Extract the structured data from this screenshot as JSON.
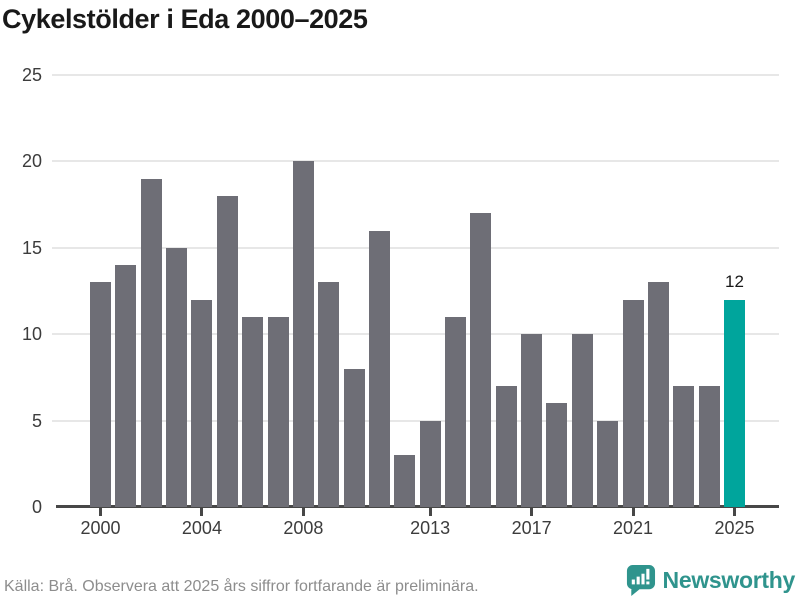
{
  "header": {
    "title": "Cykelstölder i Eda 2000–2025"
  },
  "chart_data": {
    "type": "bar",
    "title": "Cykelstölder i Eda 2000–2025",
    "categories": [
      2000,
      2001,
      2002,
      2003,
      2004,
      2005,
      2006,
      2007,
      2008,
      2009,
      2010,
      2011,
      2012,
      2013,
      2014,
      2015,
      2016,
      2017,
      2018,
      2019,
      2020,
      2021,
      2022,
      2023,
      2024,
      2025
    ],
    "values": [
      13,
      14,
      19,
      15,
      12,
      18,
      11,
      11,
      20,
      13,
      8,
      16,
      3,
      5,
      11,
      17,
      7,
      10,
      6,
      10,
      5,
      12,
      13,
      7,
      7,
      12
    ],
    "xlabel": "",
    "ylabel": "",
    "ylim": [
      0,
      25
    ],
    "yticks": [
      0,
      5,
      10,
      15,
      20,
      25
    ],
    "xticks": [
      2000,
      2004,
      2008,
      2013,
      2017,
      2021,
      2025
    ],
    "grid": true,
    "legend_position": "none",
    "highlight": {
      "year": 2025,
      "value": 12,
      "label": "12",
      "color": "#00a59c"
    },
    "bar_color": "#6e6e76"
  },
  "footer": {
    "source": "Källa: Brå. Observera att 2025 års siffror fortfarande är preliminära.",
    "brand": "Newsworthy"
  },
  "colors": {
    "title": "#191919",
    "bar_gray": "#6e6e76",
    "bar_teal": "#00a59c",
    "axis": "#474747",
    "gridline": "#e7e7e7",
    "tick_label": "#3c3c3c",
    "source_text": "#8d8d8d",
    "brand_teal": "#2f948d"
  },
  "icons": {
    "brand_logo": "newsworthy-speech-bubble-bar-chart-icon"
  }
}
